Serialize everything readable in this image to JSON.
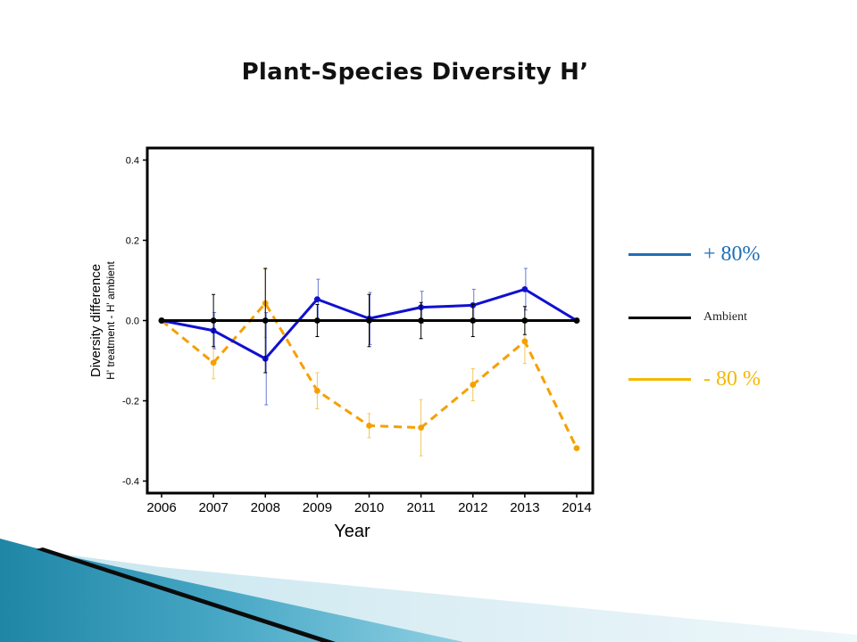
{
  "slide": {
    "title": "Plant-Species Diversity H’"
  },
  "legend": [
    {
      "label": "+ 80%",
      "color": "#1f6fb5"
    },
    {
      "label": "Ambient",
      "color": "#000000"
    },
    {
      "label": "- 80 %",
      "color": "#f5b800"
    }
  ],
  "chart_data": {
    "type": "line",
    "xlabel": "Year",
    "ylabel": "Diversity difference",
    "ylabel2": "H' treatment - H' ambient",
    "x": [
      "2006",
      "2007",
      "2008",
      "2009",
      "2010",
      "2011",
      "2012",
      "2013",
      "2014"
    ],
    "ylim": [
      -0.43,
      0.43
    ],
    "yticks": [
      "0.4",
      "0.2",
      "0.0",
      "-0.2",
      "-0.4"
    ],
    "grid": false,
    "series": [
      {
        "name": "+ 80%",
        "color": "#1010d0",
        "dash": false,
        "values": [
          0.0,
          -0.025,
          -0.095,
          0.053,
          0.005,
          0.033,
          0.038,
          0.078,
          0.0
        ],
        "err": [
          0,
          0.045,
          0.115,
          0.05,
          0.065,
          0.04,
          0.04,
          0.052,
          0
        ]
      },
      {
        "name": "Ambient",
        "color": "#000000",
        "dash": false,
        "values": [
          0,
          0,
          0,
          0,
          0,
          0,
          0,
          0,
          0
        ],
        "err": [
          0,
          0.065,
          0.13,
          0.04,
          0.065,
          0.045,
          0.04,
          0.035,
          0
        ]
      },
      {
        "name": "- 80 %",
        "color": "#f5a000",
        "dash": true,
        "values": [
          0.0,
          -0.105,
          0.043,
          -0.175,
          -0.262,
          -0.267,
          -0.16,
          -0.052,
          -0.318
        ],
        "err": [
          0,
          0.04,
          0.085,
          0.045,
          0.03,
          0.07,
          0.04,
          0.055,
          0
        ]
      }
    ]
  }
}
